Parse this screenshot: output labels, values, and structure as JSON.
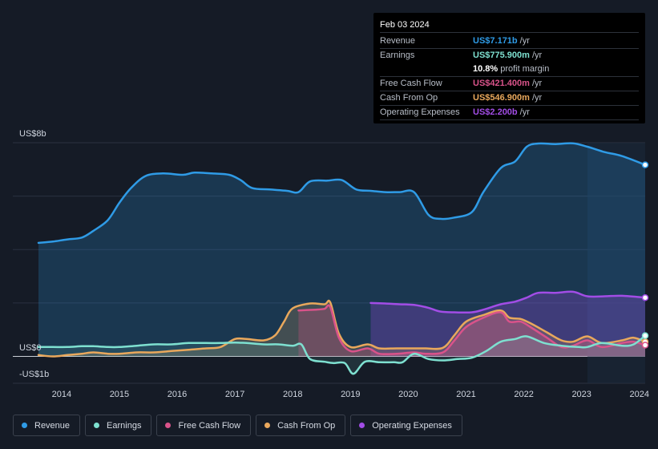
{
  "tooltip": {
    "date": "Feb 03 2024",
    "rows": [
      {
        "key": "Revenue",
        "value": "US$7.171b",
        "unit": "/yr",
        "color": "#2f9be6"
      },
      {
        "key": "Earnings",
        "value": "US$775.900m",
        "unit": "/yr",
        "color": "#7ee0d0"
      },
      {
        "key": "",
        "value": "10.8%",
        "unit": "profit margin",
        "color": "#ffffff"
      },
      {
        "key": "Free Cash Flow",
        "value": "US$421.400m",
        "unit": "/yr",
        "color": "#d9538a"
      },
      {
        "key": "Cash From Op",
        "value": "US$546.900m",
        "unit": "/yr",
        "color": "#e9a85c"
      },
      {
        "key": "Operating Expenses",
        "value": "US$2.200b",
        "unit": "/yr",
        "color": "#a24de6"
      }
    ]
  },
  "legend": [
    {
      "label": "Revenue",
      "color": "#2f9be6"
    },
    {
      "label": "Earnings",
      "color": "#7ee0d0"
    },
    {
      "label": "Free Cash Flow",
      "color": "#d9538a"
    },
    {
      "label": "Cash From Op",
      "color": "#e9a85c"
    },
    {
      "label": "Operating Expenses",
      "color": "#a24de6"
    }
  ],
  "chart_data": {
    "type": "area",
    "y_tick_labels": [
      "US$8b",
      "US$0",
      "-US$1b"
    ],
    "ylim": [
      -1,
      8
    ],
    "xlim": [
      2013.6,
      2024.1
    ],
    "x_tick_labels": [
      "2014",
      "2015",
      "2016",
      "2017",
      "2018",
      "2019",
      "2020",
      "2021",
      "2022",
      "2023",
      "2024"
    ],
    "x_ticks": [
      2014,
      2015,
      2016,
      2017,
      2018,
      2019,
      2020,
      2021,
      2022,
      2023,
      2024
    ],
    "forecast_start": 2023.1,
    "grid": true,
    "series": [
      {
        "name": "Revenue",
        "color": "#2f9be6",
        "x": [
          2013.6,
          2013.85,
          2014.1,
          2014.35,
          2014.55,
          2014.8,
          2015.0,
          2015.2,
          2015.45,
          2015.75,
          2016.1,
          2016.3,
          2016.6,
          2016.9,
          2017.1,
          2017.3,
          2017.6,
          2017.9,
          2018.1,
          2018.3,
          2018.6,
          2018.85,
          2019.1,
          2019.35,
          2019.6,
          2019.85,
          2020.1,
          2020.35,
          2020.55,
          2020.8,
          2021.1,
          2021.3,
          2021.6,
          2021.85,
          2022.05,
          2022.25,
          2022.55,
          2022.85,
          2023.1,
          2023.4,
          2023.7,
          2024.1
        ],
        "y": [
          4.25,
          4.3,
          4.38,
          4.45,
          4.7,
          5.1,
          5.75,
          6.3,
          6.75,
          6.85,
          6.8,
          6.88,
          6.85,
          6.8,
          6.6,
          6.3,
          6.25,
          6.2,
          6.15,
          6.55,
          6.58,
          6.6,
          6.25,
          6.2,
          6.15,
          6.15,
          6.15,
          5.3,
          5.15,
          5.2,
          5.4,
          6.15,
          7.05,
          7.3,
          7.85,
          7.97,
          7.95,
          7.98,
          7.85,
          7.65,
          7.5,
          7.171
        ]
      },
      {
        "name": "Operating Expenses",
        "color": "#a24de6",
        "x": [
          2019.35,
          2019.6,
          2019.85,
          2020.1,
          2020.35,
          2020.55,
          2020.8,
          2021.1,
          2021.3,
          2021.6,
          2021.85,
          2022.05,
          2022.25,
          2022.55,
          2022.85,
          2023.1,
          2023.4,
          2023.7,
          2024.1
        ],
        "y": [
          2.0,
          1.98,
          1.95,
          1.93,
          1.82,
          1.68,
          1.65,
          1.65,
          1.75,
          1.95,
          2.05,
          2.2,
          2.38,
          2.38,
          2.42,
          2.25,
          2.25,
          2.27,
          2.2
        ]
      },
      {
        "name": "Cash From Op",
        "color": "#e9a85c",
        "x": [
          2013.6,
          2013.85,
          2014.1,
          2014.35,
          2014.55,
          2014.8,
          2015.0,
          2015.3,
          2015.6,
          2015.9,
          2016.2,
          2016.5,
          2016.75,
          2017.0,
          2017.2,
          2017.5,
          2017.7,
          2017.85,
          2018.0,
          2018.3,
          2018.55,
          2018.65,
          2018.8,
          2019.0,
          2019.3,
          2019.5,
          2019.8,
          2020.1,
          2020.3,
          2020.6,
          2020.8,
          2021.0,
          2021.3,
          2021.6,
          2021.75,
          2021.95,
          2022.15,
          2022.4,
          2022.65,
          2022.85,
          2023.1,
          2023.35,
          2023.7,
          2023.9,
          2024.1
        ],
        "y": [
          0.05,
          0.0,
          0.05,
          0.1,
          0.15,
          0.1,
          0.1,
          0.15,
          0.15,
          0.2,
          0.25,
          0.3,
          0.35,
          0.65,
          0.65,
          0.6,
          0.8,
          1.3,
          1.8,
          1.98,
          1.95,
          2.02,
          0.85,
          0.35,
          0.45,
          0.3,
          0.3,
          0.3,
          0.3,
          0.32,
          0.8,
          1.3,
          1.55,
          1.72,
          1.45,
          1.4,
          1.2,
          0.9,
          0.6,
          0.55,
          0.75,
          0.5,
          0.6,
          0.7,
          0.547
        ]
      },
      {
        "name": "Free Cash Flow",
        "color": "#d9538a",
        "x": [
          2018.1,
          2018.4,
          2018.55,
          2018.65,
          2018.8,
          2019.0,
          2019.3,
          2019.5,
          2019.8,
          2020.1,
          2020.3,
          2020.6,
          2020.8,
          2021.0,
          2021.3,
          2021.6,
          2021.75,
          2021.95,
          2022.15,
          2022.4,
          2022.65,
          2022.85,
          2023.1,
          2023.35,
          2023.7,
          2023.9,
          2024.1
        ],
        "y": [
          1.72,
          1.75,
          1.78,
          1.85,
          0.7,
          0.2,
          0.3,
          0.1,
          0.1,
          0.15,
          0.1,
          0.15,
          0.6,
          1.1,
          1.45,
          1.65,
          1.3,
          1.3,
          1.05,
          0.7,
          0.35,
          0.4,
          0.6,
          0.35,
          0.5,
          0.55,
          0.421
        ]
      },
      {
        "name": "Earnings",
        "color": "#7ee0d0",
        "x": [
          2013.6,
          2013.85,
          2014.1,
          2014.35,
          2014.55,
          2014.8,
          2015.0,
          2015.3,
          2015.6,
          2015.9,
          2016.2,
          2016.5,
          2016.75,
          2017.0,
          2017.2,
          2017.5,
          2017.75,
          2018.0,
          2018.15,
          2018.3,
          2018.55,
          2018.7,
          2018.9,
          2019.05,
          2019.25,
          2019.5,
          2019.75,
          2019.9,
          2020.1,
          2020.35,
          2020.6,
          2020.85,
          2021.1,
          2021.35,
          2021.6,
          2021.85,
          2022.05,
          2022.35,
          2022.65,
          2022.95,
          2023.1,
          2023.35,
          2023.7,
          2023.9,
          2024.1
        ],
        "y": [
          0.35,
          0.35,
          0.35,
          0.38,
          0.38,
          0.35,
          0.35,
          0.4,
          0.45,
          0.45,
          0.5,
          0.5,
          0.5,
          0.52,
          0.5,
          0.45,
          0.45,
          0.4,
          0.45,
          -0.1,
          -0.2,
          -0.25,
          -0.25,
          -0.65,
          -0.2,
          -0.22,
          -0.22,
          -0.22,
          0.1,
          -0.1,
          -0.15,
          -0.1,
          -0.05,
          0.2,
          0.55,
          0.65,
          0.75,
          0.5,
          0.4,
          0.35,
          0.35,
          0.5,
          0.4,
          0.45,
          0.776
        ]
      }
    ]
  }
}
